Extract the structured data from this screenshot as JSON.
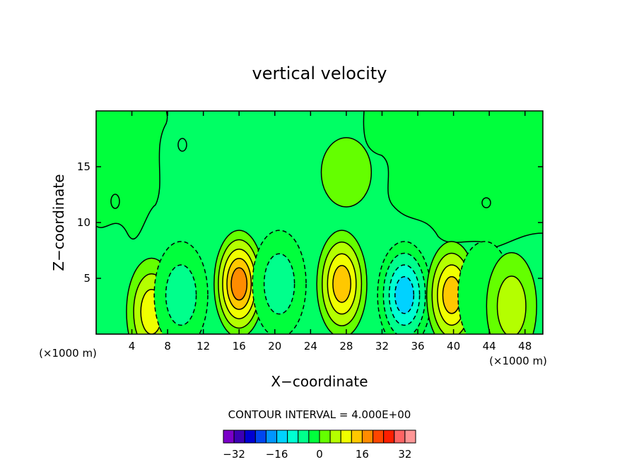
{
  "chart_data": {
    "type": "heatmap",
    "title": "vertical velocity",
    "xlabel": "X−coordinate",
    "ylabel": "Z−coordinate",
    "x_unit_left": "(×1000 m)",
    "x_unit_right": "(×1000 m)",
    "xlim": [
      0,
      50
    ],
    "ylim": [
      0,
      20
    ],
    "x_ticks": [
      4,
      8,
      12,
      16,
      20,
      24,
      28,
      32,
      36,
      40,
      44,
      48
    ],
    "y_ticks": [
      5,
      10,
      15
    ],
    "x_tick_labels": [
      "4",
      "8",
      "12",
      "16",
      "20",
      "24",
      "28",
      "32",
      "36",
      "40",
      "44",
      "48"
    ],
    "y_tick_labels": [
      "5",
      "10",
      "15"
    ],
    "contour_interval_label": "CONTOUR INTERVAL = 4.000E+00",
    "contour_interval": 4,
    "colorbar": {
      "colors": [
        "#7a00c8",
        "#3c00b4",
        "#0000d2",
        "#0046f0",
        "#0096ff",
        "#00d2ff",
        "#00ffd2",
        "#00ff8c",
        "#00ff3c",
        "#64ff00",
        "#b4ff00",
        "#f0ff00",
        "#ffc800",
        "#ff8c00",
        "#ff4600",
        "#ff1e00",
        "#ff6464",
        "#ff9696"
      ],
      "tick_labels": [
        "−32",
        "−16",
        "0",
        "16",
        "32"
      ],
      "tick_values": [
        -32,
        -16,
        0,
        16,
        32
      ],
      "range": [
        -36,
        36
      ]
    },
    "features": [
      {
        "x": 6.2,
        "z": 2.0,
        "peak": 12
      },
      {
        "x": 9.5,
        "z": 3.5,
        "peak": -8
      },
      {
        "x": 16.0,
        "z": 4.5,
        "peak": 20
      },
      {
        "x": 20.5,
        "z": 4.5,
        "peak": -8
      },
      {
        "x": 27.5,
        "z": 4.5,
        "peak": 16
      },
      {
        "x": 34.5,
        "z": 3.5,
        "peak": -16
      },
      {
        "x": 39.8,
        "z": 3.5,
        "peak": 16
      },
      {
        "x": 43.5,
        "z": 3.5,
        "peak": -4
      },
      {
        "x": 46.5,
        "z": 2.5,
        "peak": 8
      },
      {
        "x": 28.0,
        "z": 14.5,
        "peak": 2
      }
    ]
  }
}
